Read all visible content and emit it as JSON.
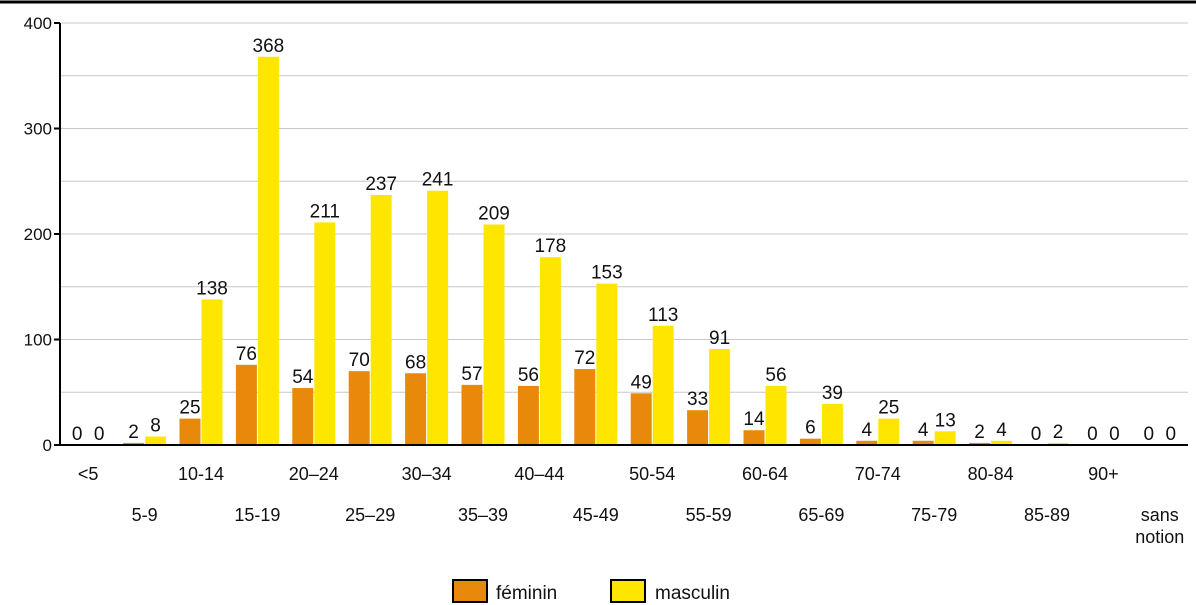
{
  "chart_data": {
    "type": "bar",
    "categories": [
      "<5",
      "5-9",
      "10-14",
      "15-19",
      "20–24",
      "25–29",
      "30–34",
      "35–39",
      "40–44",
      "45-49",
      "50-54",
      "55-59",
      "60-64",
      "65-69",
      "70-74",
      "75-79",
      "80-84",
      "85-89",
      "90+",
      "sans notion"
    ],
    "series": [
      {
        "name": "féminin",
        "color": "#e8890c",
        "values": [
          0,
          2,
          25,
          76,
          54,
          70,
          68,
          57,
          56,
          72,
          49,
          33,
          14,
          6,
          4,
          4,
          2,
          0,
          0,
          0
        ]
      },
      {
        "name": "masculin",
        "color": "#ffe600",
        "values": [
          0,
          8,
          138,
          368,
          211,
          237,
          241,
          209,
          178,
          153,
          113,
          91,
          56,
          39,
          25,
          13,
          4,
          2,
          0,
          0
        ]
      }
    ],
    "ylim": [
      0,
      400
    ],
    "yticks": [
      0,
      100,
      200,
      300,
      400
    ],
    "grid": true,
    "legend_position": "bottom-center",
    "title": "",
    "xlabel": "",
    "ylabel": ""
  }
}
